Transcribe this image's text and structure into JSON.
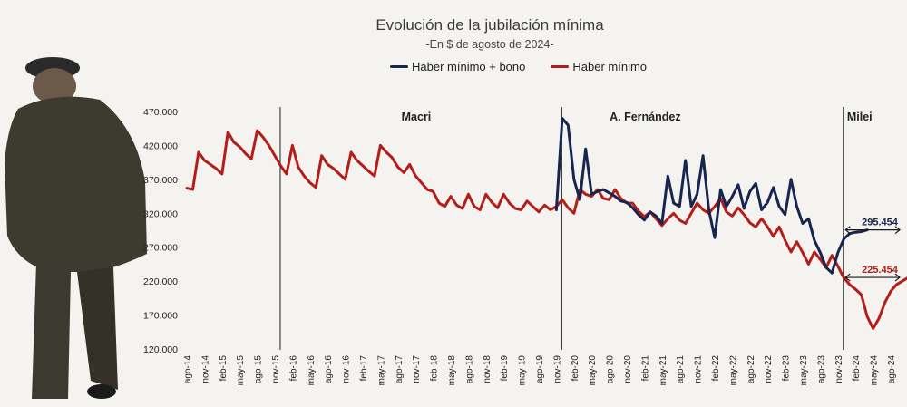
{
  "chart_data": {
    "type": "line",
    "title": "Evolución de la jubilación mínima",
    "subtitle": "-En $  de agosto de 2024-",
    "xlabel": "",
    "ylabel": "",
    "ylim": [
      120000,
      470000
    ],
    "yticks": [
      120000,
      170000,
      220000,
      270000,
      320000,
      370000,
      420000,
      470000
    ],
    "ytick_labels": [
      "120.000",
      "170.000",
      "220.000",
      "270.000",
      "320.000",
      "370.000",
      "420.000",
      "470.000"
    ],
    "x_start": "ago-14",
    "x_end": "ago-24",
    "xtick_labels": [
      "ago-14",
      "nov-14",
      "feb-15",
      "may-15",
      "ago-15",
      "nov-15",
      "feb-16",
      "may-16",
      "ago-16",
      "nov-16",
      "feb-17",
      "may-17",
      "ago-17",
      "nov-17",
      "feb-18",
      "may-18",
      "ago-18",
      "nov-18",
      "feb-19",
      "may-19",
      "ago-19",
      "nov-19",
      "feb-20",
      "may-20",
      "ago-20",
      "nov-20",
      "feb-21",
      "may-21",
      "ago-21",
      "nov-21",
      "feb-22",
      "may-22",
      "ago-22",
      "nov-22",
      "feb-23",
      "may-23",
      "ago-23",
      "nov-23",
      "feb-24",
      "may-24",
      "ago-24"
    ],
    "series": [
      {
        "name": "Haber mínimo + bono",
        "color": "#17264f",
        "points": [
          [
            63,
            325000
          ],
          [
            64,
            460000
          ],
          [
            65,
            450000
          ],
          [
            66,
            370000
          ],
          [
            67,
            340000
          ],
          [
            68,
            415000
          ],
          [
            69,
            348000
          ],
          [
            70,
            352000
          ],
          [
            71,
            355000
          ],
          [
            72,
            350000
          ],
          [
            73,
            345000
          ],
          [
            74,
            338000
          ],
          [
            75,
            336000
          ],
          [
            76,
            328000
          ],
          [
            77,
            318000
          ],
          [
            78,
            310000
          ],
          [
            79,
            322000
          ],
          [
            80,
            316000
          ],
          [
            81,
            305000
          ],
          [
            82,
            375000
          ],
          [
            83,
            335000
          ],
          [
            84,
            330000
          ],
          [
            85,
            398000
          ],
          [
            86,
            330000
          ],
          [
            87,
            348000
          ],
          [
            88,
            405000
          ],
          [
            89,
            325000
          ],
          [
            90,
            284000
          ],
          [
            91,
            355000
          ],
          [
            92,
            330000
          ],
          [
            93,
            345000
          ],
          [
            94,
            362000
          ],
          [
            95,
            327000
          ],
          [
            96,
            352000
          ],
          [
            97,
            364000
          ],
          [
            98,
            325000
          ],
          [
            99,
            336000
          ],
          [
            100,
            358000
          ],
          [
            101,
            330000
          ],
          [
            102,
            318000
          ],
          [
            103,
            370000
          ],
          [
            104,
            330000
          ],
          [
            105,
            305000
          ],
          [
            106,
            312000
          ],
          [
            107,
            280000
          ],
          [
            108,
            262000
          ],
          [
            109,
            240000
          ],
          [
            110,
            232000
          ],
          [
            111,
            262000
          ],
          [
            112,
            282000
          ],
          [
            113,
            290000
          ],
          [
            114,
            292000
          ],
          [
            115,
            293000
          ],
          [
            116,
            295454
          ]
        ]
      },
      {
        "name": "Haber mínimo",
        "color": "#b31d1a",
        "points": [
          [
            0,
            357000
          ],
          [
            1,
            355000
          ],
          [
            2,
            410000
          ],
          [
            3,
            398000
          ],
          [
            4,
            392000
          ],
          [
            5,
            386000
          ],
          [
            6,
            378000
          ],
          [
            7,
            440000
          ],
          [
            8,
            425000
          ],
          [
            9,
            418000
          ],
          [
            10,
            408000
          ],
          [
            11,
            400000
          ],
          [
            12,
            442000
          ],
          [
            13,
            432000
          ],
          [
            14,
            420000
          ],
          [
            15,
            405000
          ],
          [
            16,
            390000
          ],
          [
            17,
            378000
          ],
          [
            18,
            420000
          ],
          [
            19,
            388000
          ],
          [
            20,
            375000
          ],
          [
            21,
            365000
          ],
          [
            22,
            358000
          ],
          [
            23,
            405000
          ],
          [
            24,
            392000
          ],
          [
            25,
            386000
          ],
          [
            26,
            378000
          ],
          [
            27,
            370000
          ],
          [
            28,
            410000
          ],
          [
            29,
            398000
          ],
          [
            30,
            390000
          ],
          [
            31,
            382000
          ],
          [
            32,
            375000
          ],
          [
            33,
            420000
          ],
          [
            34,
            410000
          ],
          [
            35,
            402000
          ],
          [
            36,
            388000
          ],
          [
            37,
            380000
          ],
          [
            38,
            392000
          ],
          [
            39,
            375000
          ],
          [
            40,
            365000
          ],
          [
            41,
            355000
          ],
          [
            42,
            352000
          ],
          [
            43,
            335000
          ],
          [
            44,
            330000
          ],
          [
            45,
            345000
          ],
          [
            46,
            332000
          ],
          [
            47,
            327000
          ],
          [
            48,
            348000
          ],
          [
            49,
            330000
          ],
          [
            50,
            325000
          ],
          [
            51,
            348000
          ],
          [
            52,
            336000
          ],
          [
            53,
            328000
          ],
          [
            54,
            348000
          ],
          [
            55,
            335000
          ],
          [
            56,
            327000
          ],
          [
            57,
            325000
          ],
          [
            58,
            338000
          ],
          [
            59,
            330000
          ],
          [
            60,
            322000
          ],
          [
            61,
            332000
          ],
          [
            62,
            325000
          ],
          [
            63,
            330000
          ],
          [
            64,
            340000
          ],
          [
            65,
            328000
          ],
          [
            66,
            320000
          ],
          [
            67,
            355000
          ],
          [
            68,
            348000
          ],
          [
            69,
            345000
          ],
          [
            70,
            355000
          ],
          [
            71,
            342000
          ],
          [
            72,
            340000
          ],
          [
            73,
            355000
          ],
          [
            74,
            342000
          ],
          [
            75,
            335000
          ],
          [
            76,
            335000
          ],
          [
            77,
            323000
          ],
          [
            78,
            315000
          ],
          [
            79,
            322000
          ],
          [
            80,
            312000
          ],
          [
            81,
            302000
          ],
          [
            82,
            312000
          ],
          [
            83,
            320000
          ],
          [
            84,
            310000
          ],
          [
            85,
            305000
          ],
          [
            86,
            320000
          ],
          [
            87,
            335000
          ],
          [
            88,
            325000
          ],
          [
            89,
            320000
          ],
          [
            90,
            330000
          ],
          [
            91,
            342000
          ],
          [
            92,
            322000
          ],
          [
            93,
            316000
          ],
          [
            94,
            328000
          ],
          [
            95,
            318000
          ],
          [
            96,
            306000
          ],
          [
            97,
            300000
          ],
          [
            98,
            312000
          ],
          [
            99,
            300000
          ],
          [
            100,
            286000
          ],
          [
            101,
            300000
          ],
          [
            102,
            280000
          ],
          [
            103,
            263000
          ],
          [
            104,
            278000
          ],
          [
            105,
            262000
          ],
          [
            106,
            245000
          ],
          [
            107,
            263000
          ],
          [
            108,
            252000
          ],
          [
            109,
            240000
          ],
          [
            110,
            258000
          ],
          [
            111,
            242000
          ],
          [
            112,
            225000
          ],
          [
            113,
            215000
          ],
          [
            114,
            208000
          ],
          [
            115,
            200000
          ],
          [
            116,
            168000
          ],
          [
            117,
            150000
          ],
          [
            118,
            165000
          ],
          [
            119,
            188000
          ],
          [
            120,
            205000
          ],
          [
            121,
            215000
          ],
          [
            122,
            220000
          ],
          [
            123,
            225454
          ]
        ]
      }
    ],
    "period_labels": [
      {
        "label": "Macri",
        "start": "dic-15"
      },
      {
        "label": "A. Fernández",
        "start": "dic-19"
      },
      {
        "label": "Milei",
        "start": "dic-23"
      }
    ],
    "end_values": [
      {
        "series": "Haber mínimo + bono",
        "label": "295.454",
        "value": 295454
      },
      {
        "series": "Haber mínimo",
        "label": "225.454",
        "value": 225454
      }
    ],
    "grid": false,
    "legend_position": "top-center"
  }
}
